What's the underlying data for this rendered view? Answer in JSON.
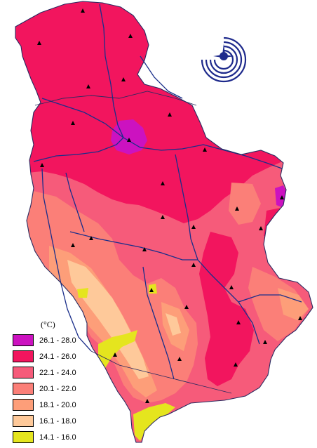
{
  "legend": {
    "unit": "(°C)",
    "classes": [
      {
        "range": "26.1 - 28.0",
        "color": "#cc12c0"
      },
      {
        "range": "24.1 - 26.0",
        "color": "#f2155e"
      },
      {
        "range": "22.1 - 24.0",
        "color": "#f65b7a"
      },
      {
        "range": "20.1 - 22.0",
        "color": "#fb7f78"
      },
      {
        "range": "18.1 - 20.0",
        "color": "#fd9e79"
      },
      {
        "range": "16.1 - 18.0",
        "color": "#fec99a"
      },
      {
        "range": "14.1 - 16.0",
        "color": "#e5e51e"
      }
    ]
  },
  "colors": {
    "river": "#1a2e8a",
    "boundary": "#2a2a60",
    "station": "#000000",
    "logo": "#1e2a8c"
  },
  "icons": {
    "station": "triangle-marker-icon",
    "logo": "institute-logo-icon"
  }
}
